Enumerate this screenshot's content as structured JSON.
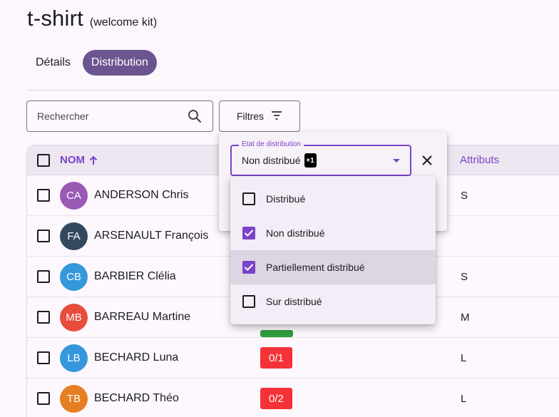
{
  "header": {
    "title": "t-shirt",
    "subtitle": "(welcome kit)"
  },
  "tabs": [
    {
      "label": "Détails",
      "active": false
    },
    {
      "label": "Distribution",
      "active": true
    }
  ],
  "search": {
    "placeholder": "Rechercher",
    "icon": "search-icon"
  },
  "filters_button": {
    "label": "Filtres",
    "icon": "filter-icon"
  },
  "table": {
    "columns": {
      "name": "NOM",
      "name_sort": "ascending",
      "attributes": "Attributs"
    },
    "rows": [
      {
        "initials": "CA",
        "name": "ANDERSON Chris",
        "avatar_color": "#9b59b6",
        "status": "",
        "attribute": "S"
      },
      {
        "initials": "FA",
        "name": "ARSENAULT François",
        "avatar_color": "#34495e",
        "status": "",
        "attribute": ""
      },
      {
        "initials": "CB",
        "name": "BARBIER Clélia",
        "avatar_color": "#3498db",
        "status": "",
        "attribute": "S"
      },
      {
        "initials": "MB",
        "name": "BARREAU Martine",
        "avatar_color": "#e74c3c",
        "status": "",
        "attribute": "M"
      },
      {
        "initials": "LB",
        "name": "BECHARD Luna",
        "avatar_color": "#3498db",
        "status": "0/1",
        "attribute": "L"
      },
      {
        "initials": "TB",
        "name": "BECHARD Théo",
        "avatar_color": "#e67e22",
        "status": "0/2",
        "attribute": "L"
      }
    ]
  },
  "filter_popover": {
    "select_label": "Etat de distribution",
    "select_value": "Non distribué",
    "extra_count": "+1",
    "options": [
      {
        "label": "Distribué",
        "checked": false,
        "highlighted": false
      },
      {
        "label": "Non distribué",
        "checked": true,
        "highlighted": false
      },
      {
        "label": "Partiellement distribué",
        "checked": true,
        "highlighted": true
      },
      {
        "label": "Sur distribué",
        "checked": false,
        "highlighted": false
      }
    ]
  },
  "colors": {
    "accent": "#7a44c8",
    "tab_active": "#6c5490",
    "badge_red": "#f53238",
    "badge_green": "#2e9e3c"
  }
}
